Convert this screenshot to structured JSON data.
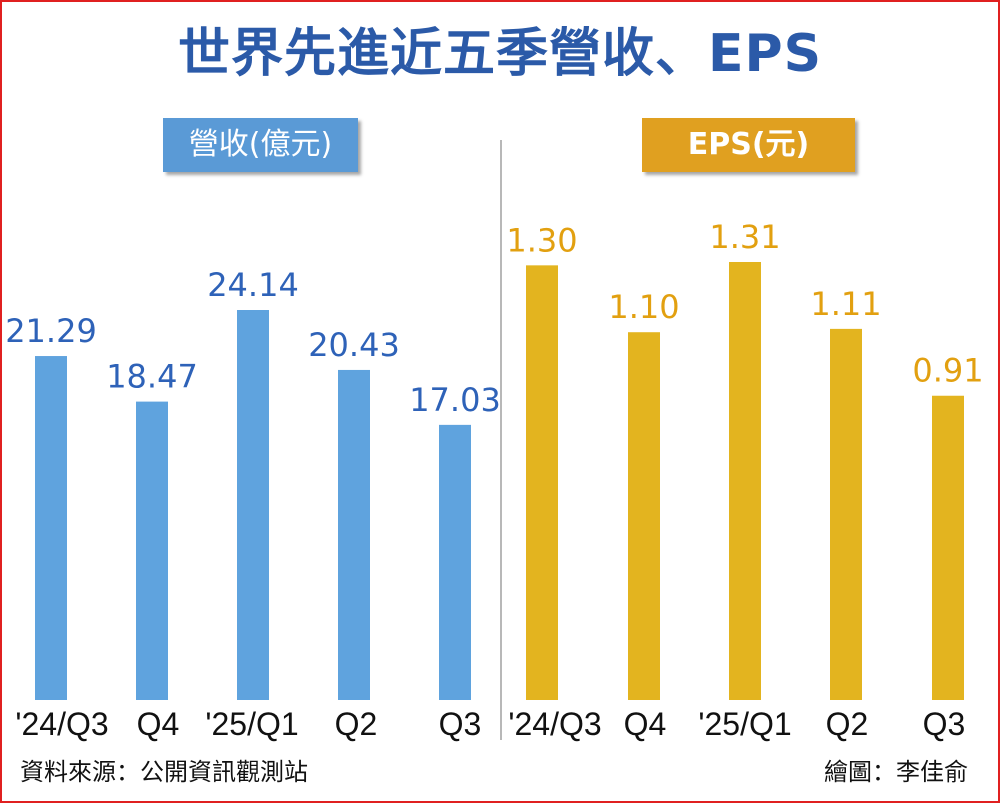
{
  "title": "世界先進近五季營收、EPS",
  "footer": {
    "source": "資料來源：公開資訊觀測站",
    "credit": "繪圖：李佳俞"
  },
  "colors": {
    "revenue": "#5fa3de",
    "eps": "#e3b41f",
    "title": "#2b5aa8",
    "revenue_header": "#5a9ad6",
    "eps_header": "#e0a020",
    "border": "#e02020"
  },
  "chart_data": [
    {
      "type": "bar",
      "title": "營收(億元)",
      "categories": [
        "'24/Q3",
        "Q4",
        "'25/Q1",
        "Q2",
        "Q3"
      ],
      "values": [
        21.29,
        18.47,
        24.14,
        20.43,
        17.03
      ],
      "labels": [
        "21.29",
        "18.47",
        "24.14",
        "20.43",
        "17.03"
      ],
      "ylabel": "億元",
      "ylim": [
        0,
        24.14
      ]
    },
    {
      "type": "bar",
      "title": "EPS(元)",
      "categories": [
        "'24/Q3",
        "Q4",
        "'25/Q1",
        "Q2",
        "Q3"
      ],
      "values": [
        1.3,
        1.1,
        1.31,
        1.11,
        0.91
      ],
      "labels": [
        "1.30",
        "1.10",
        "1.31",
        "1.11",
        "0.91"
      ],
      "ylabel": "元",
      "ylim": [
        0,
        1.31
      ]
    }
  ]
}
